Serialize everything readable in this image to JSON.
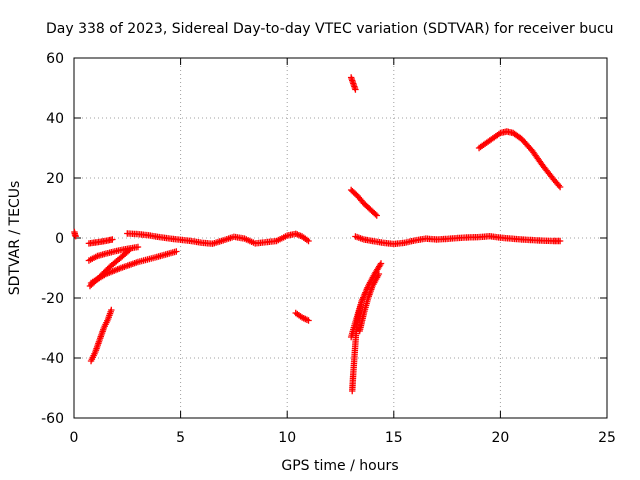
{
  "chart_data": {
    "type": "scatter",
    "title": "Day 338 of 2023, Sidereal Day-to-day VTEC variation (SDTVAR) for receiver bucu",
    "xlabel": "GPS time / hours",
    "ylabel": "SDTVAR / TECUs",
    "xlim": [
      0,
      25
    ],
    "ylim": [
      -60,
      60
    ],
    "xticks": [
      0,
      5,
      10,
      15,
      20,
      25
    ],
    "yticks": [
      -60,
      -40,
      -20,
      0,
      20,
      40,
      60
    ],
    "grid": true,
    "legend": "none",
    "marker": "plus",
    "color": "#ff0000",
    "series": [
      {
        "name": "seg-start",
        "points": [
          [
            0.02,
            2.0
          ],
          [
            0.05,
            1.0
          ],
          [
            0.08,
            0.6
          ]
        ]
      },
      {
        "name": "zero-band-a",
        "points": [
          [
            0.7,
            -1.8
          ],
          [
            1.0,
            -1.5
          ],
          [
            1.3,
            -1.2
          ],
          [
            1.6,
            -0.8
          ],
          [
            1.8,
            -0.5
          ]
        ]
      },
      {
        "name": "zero-band-b",
        "points": [
          [
            2.5,
            1.5
          ],
          [
            3.0,
            1.3
          ],
          [
            3.5,
            0.9
          ],
          [
            4.0,
            0.3
          ],
          [
            4.5,
            -0.2
          ],
          [
            5.0,
            -0.6
          ],
          [
            5.5,
            -1.0
          ],
          [
            6.0,
            -1.6
          ],
          [
            6.5,
            -1.9
          ],
          [
            7.0,
            -0.8
          ],
          [
            7.5,
            0.4
          ],
          [
            8.0,
            -0.2
          ],
          [
            8.5,
            -1.8
          ],
          [
            9.0,
            -1.4
          ],
          [
            9.5,
            -1.0
          ],
          [
            10.0,
            0.8
          ],
          [
            10.4,
            1.4
          ],
          [
            10.7,
            0.5
          ],
          [
            11.0,
            -1.0
          ]
        ]
      },
      {
        "name": "arc-1",
        "points": [
          [
            0.7,
            -7.5
          ],
          [
            1.1,
            -6.0
          ],
          [
            1.5,
            -5.2
          ],
          [
            2.0,
            -4.3
          ],
          [
            2.5,
            -3.6
          ],
          [
            3.0,
            -3.0
          ]
        ]
      },
      {
        "name": "arc-2",
        "points": [
          [
            0.75,
            -16
          ],
          [
            1.2,
            -13
          ],
          [
            1.7,
            -9.5
          ],
          [
            2.2,
            -6.5
          ],
          [
            2.6,
            -4.0
          ]
        ]
      },
      {
        "name": "arc-3",
        "points": [
          [
            0.8,
            -15
          ],
          [
            1.5,
            -12
          ],
          [
            2.2,
            -10
          ],
          [
            3.0,
            -8
          ],
          [
            3.8,
            -6.5
          ],
          [
            4.8,
            -4.5
          ]
        ]
      },
      {
        "name": "arc-4",
        "points": [
          [
            0.8,
            -41
          ],
          [
            1.0,
            -38
          ],
          [
            1.2,
            -34
          ],
          [
            1.4,
            -30
          ],
          [
            1.6,
            -27
          ],
          [
            1.75,
            -24
          ]
        ]
      },
      {
        "name": "seg-10h",
        "points": [
          [
            10.4,
            -25.0
          ],
          [
            10.7,
            -26.5
          ],
          [
            11.0,
            -27.5
          ]
        ]
      },
      {
        "name": "seg-13h-top",
        "points": [
          [
            13.0,
            53.5
          ],
          [
            13.1,
            51.5
          ],
          [
            13.2,
            49.5
          ]
        ]
      },
      {
        "name": "seg-13h-fall",
        "points": [
          [
            13.0,
            16
          ],
          [
            13.3,
            14
          ],
          [
            13.6,
            11.5
          ],
          [
            13.9,
            9.5
          ],
          [
            14.2,
            7.5
          ]
        ]
      },
      {
        "name": "zero-band-c",
        "points": [
          [
            13.2,
            0.5
          ],
          [
            13.6,
            -0.5
          ],
          [
            14.0,
            -1.0
          ],
          [
            14.5,
            -1.6
          ],
          [
            15.0,
            -2.0
          ],
          [
            15.5,
            -1.6
          ],
          [
            16.0,
            -0.8
          ],
          [
            16.5,
            -0.2
          ],
          [
            17.0,
            -0.5
          ],
          [
            17.5,
            -0.3
          ],
          [
            18.0,
            0.0
          ],
          [
            18.5,
            0.2
          ],
          [
            19.0,
            0.3
          ],
          [
            19.5,
            0.6
          ],
          [
            20.0,
            0.1
          ],
          [
            20.5,
            -0.2
          ],
          [
            21.0,
            -0.5
          ],
          [
            21.5,
            -0.7
          ],
          [
            22.0,
            -0.9
          ],
          [
            22.5,
            -1.0
          ],
          [
            22.8,
            -1.0
          ]
        ]
      },
      {
        "name": "seg-13h-steep",
        "points": [
          [
            13.05,
            -51
          ],
          [
            13.1,
            -45
          ],
          [
            13.15,
            -40
          ],
          [
            13.2,
            -35
          ],
          [
            13.25,
            -30
          ],
          [
            13.3,
            -27
          ],
          [
            13.4,
            -24
          ],
          [
            13.5,
            -21
          ]
        ]
      },
      {
        "name": "seg-13h-rise",
        "points": [
          [
            13.0,
            -33
          ],
          [
            13.2,
            -28
          ],
          [
            13.5,
            -21
          ],
          [
            13.8,
            -16
          ],
          [
            14.1,
            -12
          ],
          [
            14.4,
            -8.5
          ]
        ]
      },
      {
        "name": "seg-13h-rise-b",
        "points": [
          [
            13.4,
            -31
          ],
          [
            13.6,
            -25
          ],
          [
            13.8,
            -20
          ],
          [
            14.0,
            -16
          ],
          [
            14.3,
            -12
          ]
        ]
      },
      {
        "name": "arc-20h",
        "points": [
          [
            19.0,
            30
          ],
          [
            19.5,
            32.5
          ],
          [
            20.0,
            35
          ],
          [
            20.3,
            35.5
          ],
          [
            20.6,
            35
          ],
          [
            21.0,
            33
          ],
          [
            21.5,
            29
          ],
          [
            22.0,
            24
          ],
          [
            22.5,
            19.5
          ],
          [
            22.8,
            17
          ]
        ]
      }
    ]
  }
}
